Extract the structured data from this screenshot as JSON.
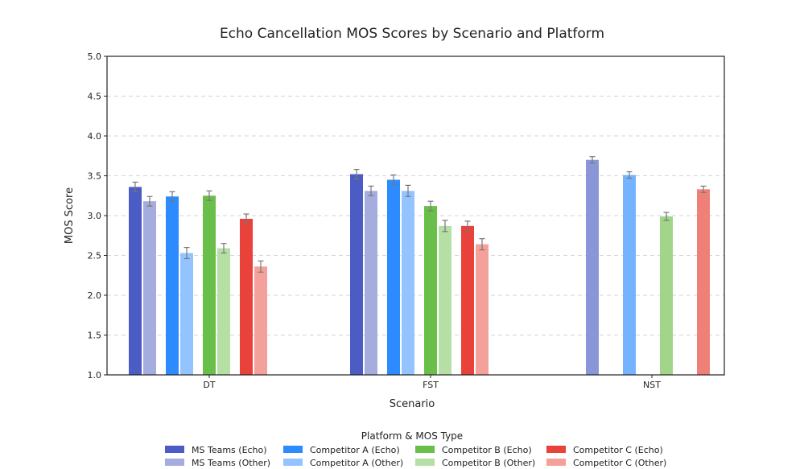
{
  "chart_data": {
    "type": "bar",
    "title": "Echo Cancellation MOS Scores by Scenario and Platform",
    "xlabel": "Scenario",
    "ylabel": "MOS Score",
    "ylim": [
      1.0,
      5.0
    ],
    "yticks": [
      "1.0",
      "1.5",
      "2.0",
      "2.5",
      "3.0",
      "3.5",
      "4.0",
      "4.5",
      "5.0"
    ],
    "grid": true,
    "categories": [
      "DT",
      "FST",
      "NST"
    ],
    "legend_title": "Platform & MOS Type",
    "legend_position": "bottom",
    "series": [
      {
        "name": "MS Teams (Echo)",
        "color": "#4b5cc4",
        "alt_color": "#4b5cc4",
        "values": [
          3.36,
          3.52,
          null
        ],
        "errors": [
          0.06,
          0.06,
          null
        ]
      },
      {
        "name": "MS Teams (Other)",
        "color": "#a5acde",
        "alt_color": "#8b96d9",
        "values": [
          3.18,
          3.31,
          3.7
        ],
        "errors": [
          0.06,
          0.06,
          0.04
        ]
      },
      {
        "name": "Competitor A (Echo)",
        "color": "#2b8bff",
        "alt_color": "#2b8bff",
        "values": [
          3.24,
          3.45,
          null
        ],
        "errors": [
          0.06,
          0.06,
          null
        ]
      },
      {
        "name": "Competitor A (Other)",
        "color": "#94c4ff",
        "alt_color": "#74b3ff",
        "values": [
          2.53,
          3.31,
          3.51
        ],
        "errors": [
          0.07,
          0.07,
          0.04
        ]
      },
      {
        "name": "Competitor B (Echo)",
        "color": "#6abf4b",
        "alt_color": "#6abf4b",
        "values": [
          3.25,
          3.12,
          null
        ],
        "errors": [
          0.06,
          0.06,
          null
        ]
      },
      {
        "name": "Competitor B (Other)",
        "color": "#b5dfa5",
        "alt_color": "#a0d58a",
        "values": [
          2.59,
          2.87,
          2.99
        ],
        "errors": [
          0.06,
          0.07,
          0.05
        ]
      },
      {
        "name": "Competitor C (Echo)",
        "color": "#e8423a",
        "alt_color": "#e8423a",
        "values": [
          2.96,
          2.87,
          null
        ],
        "errors": [
          0.06,
          0.06,
          null
        ]
      },
      {
        "name": "Competitor C (Other)",
        "color": "#f4a19b",
        "alt_color": "#ef8078",
        "values": [
          2.36,
          2.64,
          3.33
        ],
        "errors": [
          0.07,
          0.07,
          0.04
        ]
      }
    ]
  }
}
